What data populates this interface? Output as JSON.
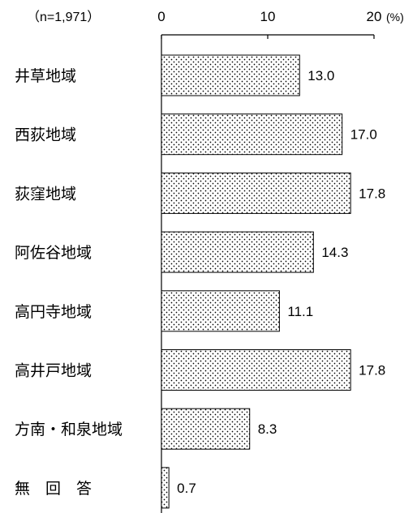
{
  "chart_data": {
    "type": "bar",
    "orientation": "horizontal",
    "sample_size": "（n=1,971）",
    "unit": "(%)",
    "categories": [
      "井草地域",
      "西荻地域",
      "荻窪地域",
      "阿佐谷地域",
      "高円寺地域",
      "高井戸地域",
      "方南・和泉地域",
      "無　回　答"
    ],
    "values": [
      13.0,
      17.0,
      17.8,
      14.3,
      11.1,
      17.8,
      8.3,
      0.7
    ],
    "value_labels": [
      "13.0",
      "17.0",
      "17.8",
      "14.3",
      "11.1",
      "17.8",
      "8.3",
      "0.7"
    ],
    "ticks": [
      "0",
      "10",
      "20"
    ],
    "xlim": [
      0,
      20
    ],
    "bar_fill": "dotted pattern",
    "grid": false
  }
}
